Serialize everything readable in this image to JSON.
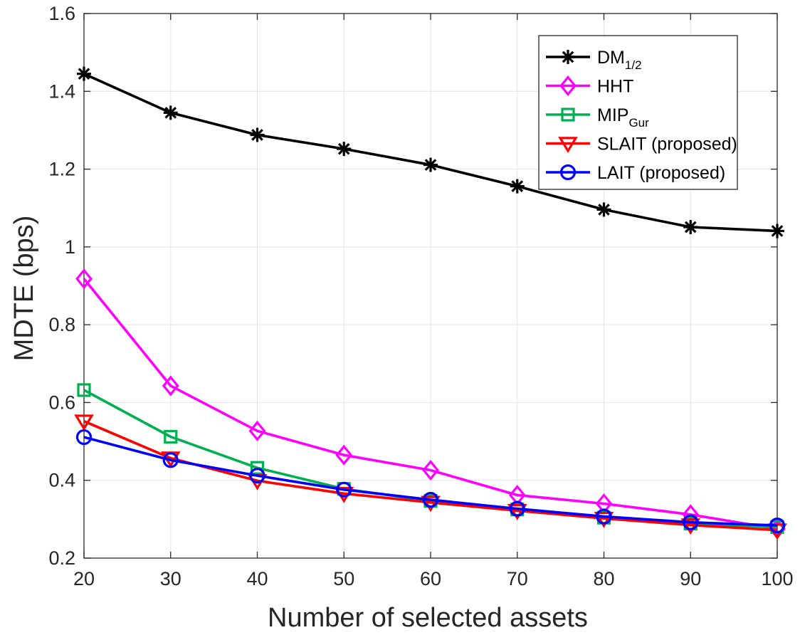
{
  "chart_data": {
    "type": "line",
    "xlabel": "Number of selected assets",
    "ylabel": "MDTE (bps)",
    "xlim": [
      20,
      100
    ],
    "ylim": [
      0.2,
      1.6
    ],
    "grid": true,
    "legend_position": "top-right",
    "x": [
      20,
      30,
      40,
      50,
      60,
      70,
      80,
      90,
      100
    ],
    "x_ticks": [
      "20",
      "30",
      "40",
      "50",
      "60",
      "70",
      "80",
      "90",
      "100"
    ],
    "y_ticks": [
      "0.2",
      "0.4",
      "0.6",
      "0.8",
      "1",
      "1.2",
      "1.4",
      "1.6"
    ],
    "series": [
      {
        "name": "DM",
        "name_sub": "1/2",
        "color": "#000000",
        "marker": "asterisk",
        "values": [
          1.445,
          1.345,
          1.288,
          1.252,
          1.211,
          1.156,
          1.096,
          1.051,
          1.041
        ]
      },
      {
        "name": "HHT",
        "name_sub": "",
        "color": "#ff00ff",
        "marker": "diamond",
        "values": [
          0.918,
          0.643,
          0.527,
          0.465,
          0.426,
          0.362,
          0.34,
          0.312,
          0.275
        ]
      },
      {
        "name": "MIP",
        "name_sub": "Gur",
        "color": "#00b050",
        "marker": "square",
        "values": [
          0.632,
          0.512,
          0.432,
          0.378,
          0.347,
          0.325,
          0.304,
          0.289,
          0.28
        ]
      },
      {
        "name": "SLAIT (proposed)",
        "name_sub": "",
        "color": "#ff0000",
        "marker": "triangle-down",
        "values": [
          0.552,
          0.457,
          0.399,
          0.366,
          0.343,
          0.322,
          0.302,
          0.285,
          0.272
        ]
      },
      {
        "name": "LAIT (proposed)",
        "name_sub": "",
        "color": "#0000ff",
        "marker": "circle",
        "values": [
          0.511,
          0.452,
          0.412,
          0.376,
          0.35,
          0.327,
          0.307,
          0.292,
          0.284
        ]
      }
    ]
  }
}
